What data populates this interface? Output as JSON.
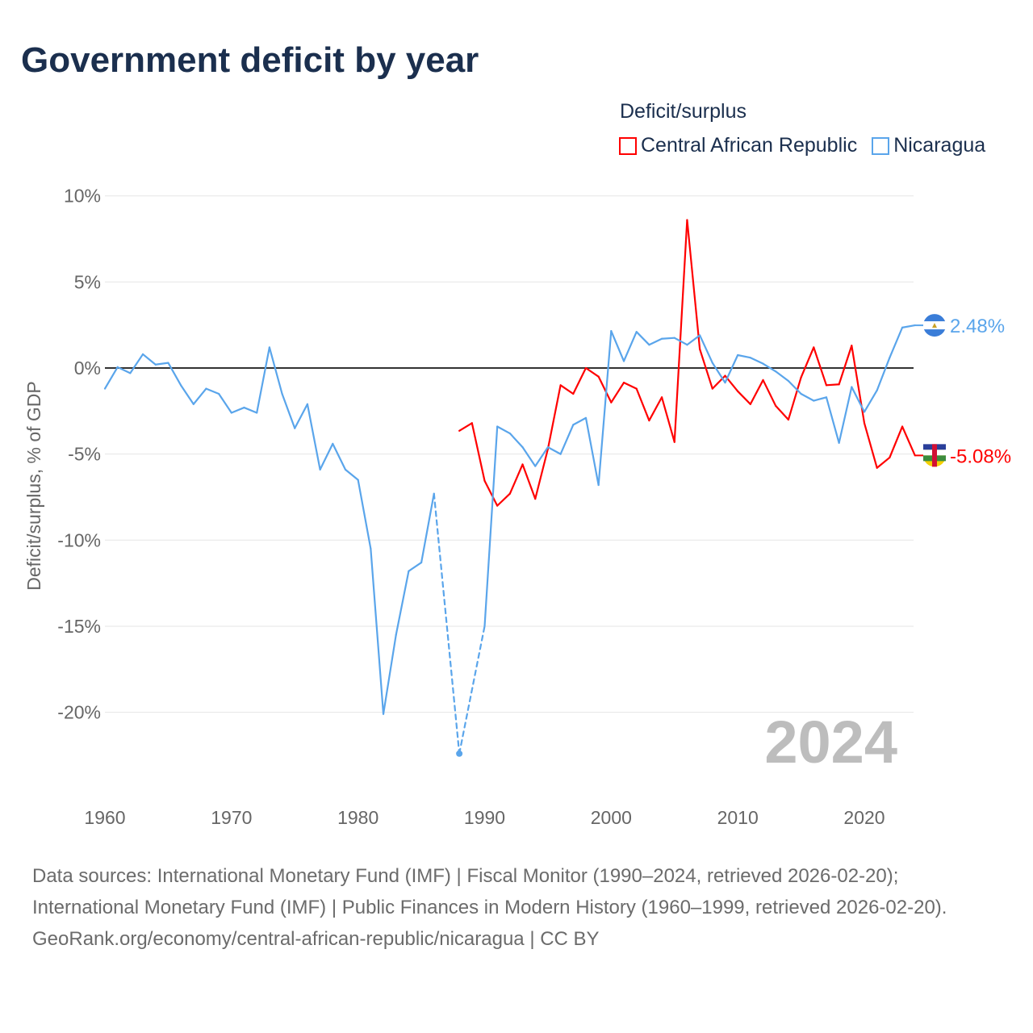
{
  "title": "Government deficit by year",
  "legend_title": "Deficit/surplus",
  "colors": {
    "car": "#ff0000",
    "nic": "#5aa5eb",
    "grid": "#e6e6e6",
    "zero": "#333333",
    "axis_text": "#666666",
    "year_watermark": "#bdbdbd"
  },
  "year_watermark": "2024",
  "footer": {
    "sources": "Data sources: International Monetary Fund (IMF) | Fiscal Monitor (1990–2024, retrieved 2026-02-20); International Monetary Fund (IMF) | Public Finances in Modern History (1960–1999, retrieved 2026-02-20).",
    "credit": "GeoRank.org/economy/central-african-republic/nicaragua | CC BY"
  },
  "chart_data": {
    "type": "line",
    "title": "Government deficit by year",
    "xlabel": "",
    "ylabel": "Deficit/surplus, % of GDP",
    "xlim": [
      1960,
      2024
    ],
    "ylim": [
      -25,
      10
    ],
    "x_ticks": [
      "1960",
      "1970",
      "1980",
      "1990",
      "2000",
      "2010",
      "2020"
    ],
    "y_ticks": [
      {
        "v": 10,
        "label": "10%"
      },
      {
        "v": 5,
        "label": "5%"
      },
      {
        "v": 0,
        "label": "0%"
      },
      {
        "v": -5,
        "label": "-5%"
      },
      {
        "v": -10,
        "label": "-10%"
      },
      {
        "v": -15,
        "label": "-15%"
      },
      {
        "v": -20,
        "label": "-20%"
      }
    ],
    "grid": true,
    "legend_position": "top-right",
    "series": [
      {
        "name": "Central African Republic",
        "key": "car",
        "end_label": "-5.08%",
        "x": [
          1988,
          1989,
          1990,
          1991,
          1992,
          1993,
          1994,
          1995,
          1996,
          1997,
          1998,
          1999,
          2000,
          2001,
          2002,
          2003,
          2004,
          2005,
          2006,
          2007,
          2008,
          2009,
          2010,
          2011,
          2012,
          2013,
          2014,
          2015,
          2016,
          2017,
          2018,
          2019,
          2020,
          2021,
          2022,
          2023,
          2024
        ],
        "values": [
          -3.65,
          -3.2,
          -6.55,
          -8.0,
          -7.3,
          -5.6,
          -7.6,
          -4.7,
          -1.0,
          -1.5,
          0.0,
          -0.5,
          -2.0,
          -0.85,
          -1.2,
          -3.05,
          -1.7,
          -4.3,
          8.6,
          1.1,
          -1.2,
          -0.45,
          -1.35,
          -2.1,
          -0.7,
          -2.2,
          -3.0,
          -0.55,
          1.2,
          -1.0,
          -0.95,
          1.3,
          -3.2,
          -5.8,
          -5.2,
          -3.4,
          -5.08
        ]
      },
      {
        "name": "Nicaragua",
        "key": "nic",
        "end_label": "2.48%",
        "x": [
          1960,
          1961,
          1962,
          1963,
          1964,
          1965,
          1966,
          1967,
          1968,
          1969,
          1970,
          1971,
          1972,
          1973,
          1974,
          1975,
          1976,
          1977,
          1978,
          1979,
          1980,
          1981,
          1982,
          1983,
          1984,
          1985,
          1986,
          1988,
          1990,
          1991,
          1992,
          1993,
          1994,
          1995,
          1996,
          1997,
          1998,
          1999,
          2000,
          2001,
          2002,
          2003,
          2004,
          2005,
          2006,
          2007,
          2008,
          2009,
          2010,
          2011,
          2012,
          2013,
          2014,
          2015,
          2016,
          2017,
          2018,
          2019,
          2020,
          2021,
          2022,
          2023,
          2024
        ],
        "values": [
          -1.2,
          0.05,
          -0.3,
          0.8,
          0.2,
          0.3,
          -1.0,
          -2.1,
          -1.2,
          -1.5,
          -2.6,
          -2.3,
          -2.6,
          1.2,
          -1.5,
          -3.5,
          -2.1,
          -5.9,
          -4.4,
          -5.9,
          -6.5,
          -10.5,
          -20.1,
          -15.5,
          -11.8,
          -11.3,
          -7.3,
          -22.4,
          -15.0,
          -3.4,
          -3.8,
          -4.6,
          -5.7,
          -4.6,
          -5.0,
          -3.3,
          -2.9,
          -6.8,
          2.15,
          0.4,
          2.1,
          1.35,
          1.7,
          1.75,
          1.35,
          1.9,
          0.3,
          -0.85,
          0.75,
          0.6,
          0.25,
          -0.2,
          -0.75,
          -1.5,
          -1.9,
          -1.7,
          -4.35,
          -1.1,
          -2.55,
          -1.3,
          0.6,
          2.35,
          2.48
        ]
      }
    ]
  }
}
